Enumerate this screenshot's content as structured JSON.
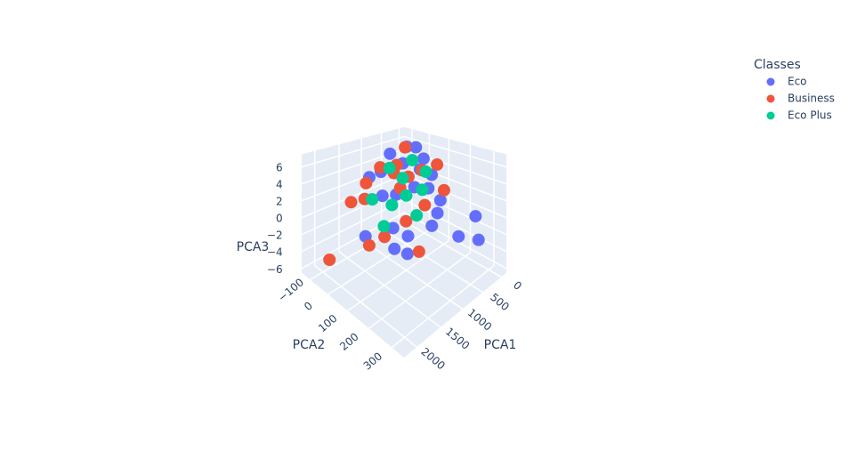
{
  "chart_data": {
    "type": "scatter3d",
    "legend_title": "Classes",
    "xlabel": "PCA1",
    "ylabel": "PCA2",
    "zlabel": "PCA3",
    "xlim": [
      -150,
      2250
    ],
    "ylim": [
      -150,
      350
    ],
    "zlim": [
      -6.5,
      7.5
    ],
    "xticks": [
      0,
      500,
      1000,
      1500,
      2000
    ],
    "yticks": [
      {
        "value": -100,
        "label": "−100"
      },
      0,
      100,
      200,
      300
    ],
    "zticks": [
      {
        "value": -6,
        "label": "−6"
      },
      {
        "value": -4,
        "label": "−4"
      },
      {
        "value": -2,
        "label": "−2"
      },
      0,
      2,
      4,
      6
    ],
    "series": [
      {
        "name": "Eco",
        "color": "#636efa",
        "x": [
          500,
          -50,
          -100,
          200,
          1400,
          1700,
          1200,
          300,
          800,
          600,
          1000,
          400,
          700,
          900,
          1100,
          350,
          1300,
          800,
          550,
          1500,
          250,
          650,
          1000,
          450
        ],
        "y": [
          0,
          250,
          230,
          200,
          -20,
          250,
          150,
          50,
          100,
          0,
          50,
          150,
          -50,
          200,
          0,
          100,
          100,
          -80,
          120,
          150,
          0,
          180,
          -100,
          60
        ],
        "z": [
          6.5,
          -3.8,
          -1.3,
          -3.35,
          -2.9,
          0.1,
          -1,
          5,
          3,
          4.5,
          2,
          1,
          5.5,
          0,
          1.5,
          3.5,
          -0.5,
          3,
          2.5,
          -1.5,
          6,
          0.5,
          2.5,
          4
        ]
      },
      {
        "name": "Business",
        "color": "#ef553b",
        "x": [
          1800,
          600,
          1600,
          1400,
          400,
          900,
          1100,
          700,
          1300,
          300,
          850,
          1200,
          500,
          1000,
          750,
          200,
          1450,
          950
        ],
        "y": [
          -120,
          -50,
          50,
          80,
          -30,
          -60,
          120,
          50,
          -50,
          150,
          20,
          200,
          80,
          -120,
          140,
          100,
          -90,
          60
        ],
        "z": [
          -6,
          2.7,
          -2.3,
          -1.5,
          6,
          4,
          0,
          3.5,
          1,
          2,
          5,
          -2,
          4.2,
          1.5,
          1.2,
          4.5,
          0.5,
          2.8
        ]
      },
      {
        "name": "Eco Plus",
        "color": "#00cc96",
        "x": [
          1500,
          700,
          900,
          500,
          1100,
          600,
          800,
          400,
          1000,
          1250
        ],
        "y": [
          100,
          20,
          80,
          30,
          50,
          100,
          -30,
          80,
          150,
          -20
        ],
        "z": [
          0.3,
          3,
          2,
          5,
          1,
          2.2,
          4,
          3.8,
          0.8,
          1.2
        ]
      }
    ]
  }
}
